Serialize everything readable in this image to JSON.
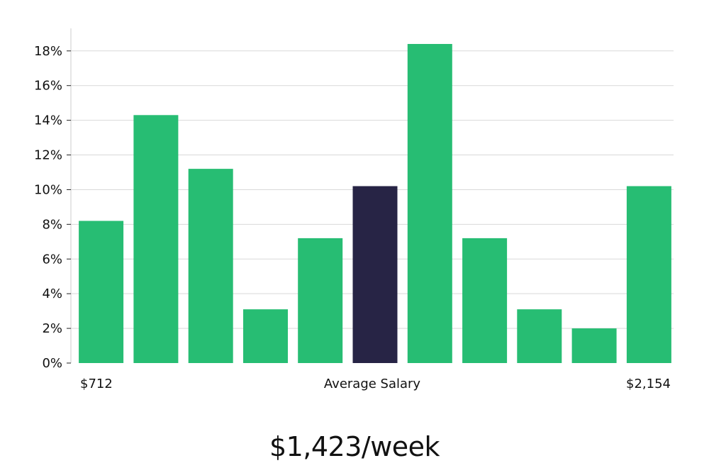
{
  "chart_data": {
    "type": "bar",
    "values": [
      8.2,
      14.3,
      11.2,
      3.1,
      7.2,
      10.2,
      18.4,
      7.2,
      3.1,
      2.0,
      10.2
    ],
    "highlight_index": 5,
    "yticks": [
      "0%",
      "2%",
      "4%",
      "6%",
      "8%",
      "10%",
      "12%",
      "14%",
      "16%",
      "18%"
    ],
    "ylim": [
      0,
      19.3
    ],
    "grid": true,
    "x_labels": {
      "left": "$712",
      "center": "Average Salary",
      "right": "$2,154"
    },
    "colors": {
      "bar": "#27bd73",
      "bar_highlight": "#272445",
      "grid": "#d9d9d9",
      "axis": "#cccccc"
    }
  },
  "summary": {
    "average_weekly": "$1,423/week"
  }
}
